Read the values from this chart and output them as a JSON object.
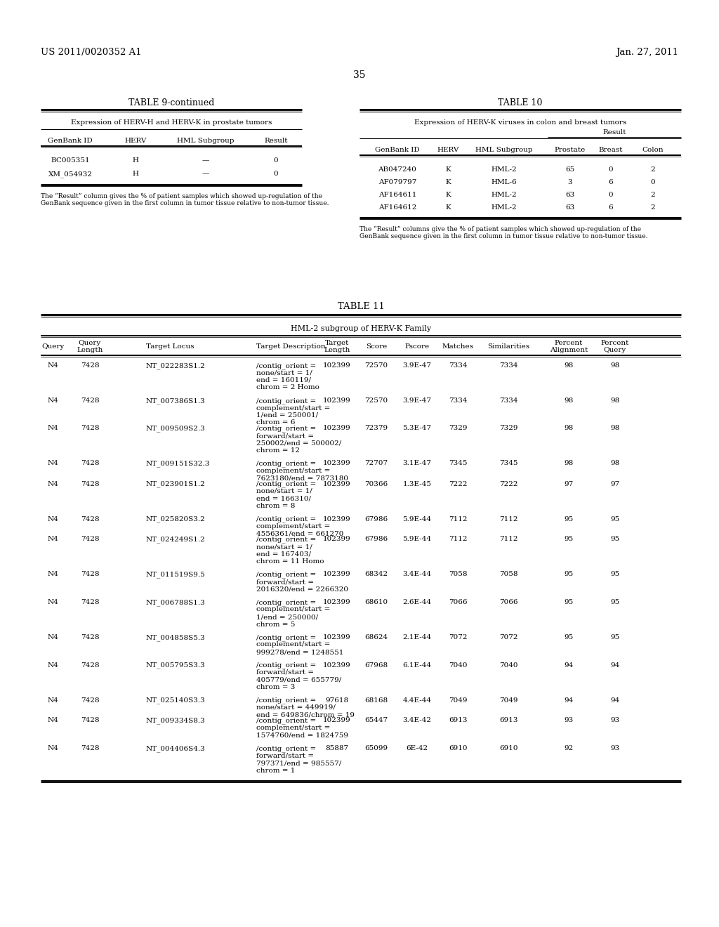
{
  "header_left": "US 2011/0020352 A1",
  "header_right": "Jan. 27, 2011",
  "page_number": "35",
  "bg_color": "#ffffff",
  "text_color": "#000000",
  "table9_title": "TABLE 9-continued",
  "table9_subtitle": "Expression of HERV-H and HERV-K in prostate tumors",
  "table9_headers": [
    "GenBank ID",
    "HERV",
    "HML Subgroup",
    "Result"
  ],
  "table9_rows": [
    [
      "BC005351",
      "H",
      "—",
      "0"
    ],
    [
      "XM_054932",
      "H",
      "—",
      "0"
    ]
  ],
  "table9_footnote": "The “Result” column gives the % of patient samples which showed up-regulation of the\nGenBank sequence given in the first column in tumor tissue relative to non-tumor tissue.",
  "table10_title": "TABLE 10",
  "table10_subtitle": "Expression of HERV-K viruses in colon and breast tumors",
  "table10_result_header": "Result",
  "table10_headers": [
    "GenBank ID",
    "HERV",
    "HML Subgroup",
    "Prostate",
    "Breast",
    "Colon"
  ],
  "table10_rows": [
    [
      "AB047240",
      "K",
      "HML-2",
      "65",
      "0",
      "2"
    ],
    [
      "AF079797",
      "K",
      "HML-6",
      "3",
      "6",
      "0"
    ],
    [
      "AF164611",
      "K",
      "HML-2",
      "63",
      "0",
      "2"
    ],
    [
      "AF164612",
      "K",
      "HML-2",
      "63",
      "6",
      "2"
    ]
  ],
  "table10_footnote": "The “Result” columns give the % of patient samples which showed up-regulation of the\nGenBank sequence given in the first column in tumor tissue relative to non-tumor tissue.",
  "table11_title": "TABLE 11",
  "table11_subtitle": "HML-2 subgroup of HERV-K Family",
  "table11_rows": [
    [
      "N4",
      "7428",
      "NT_022283S1.2",
      "/contig_orient =\nnone/start = 1/\nend = 160119/\nchrom = 2 Homo",
      "102399",
      "72570",
      "3.9E-47",
      "7334",
      "7334",
      "98",
      "98"
    ],
    [
      "N4",
      "7428",
      "NT_007386S1.3",
      "/contig_orient =\ncomplement/start =\n1/end = 250001/\nchrom = 6",
      "102399",
      "72570",
      "3.9E-47",
      "7334",
      "7334",
      "98",
      "98"
    ],
    [
      "N4",
      "7428",
      "NT_009509S2.3",
      "/contig_orient =\nforward/start =\n250002/end = 500002/\nchrom = 12",
      "102399",
      "72379",
      "5.3E-47",
      "7329",
      "7329",
      "98",
      "98"
    ],
    [
      "N4",
      "7428",
      "NT_009151S32.3",
      "/contig_orient =\ncomplement/start =\n7623180/end = 7873180",
      "102399",
      "72707",
      "3.1E-47",
      "7345",
      "7345",
      "98",
      "98"
    ],
    [
      "N4",
      "7428",
      "NT_023901S1.2",
      "/contig_orient =\nnone/start = 1/\nend = 166310/\nchrom = 8",
      "102399",
      "70366",
      "1.3E-45",
      "7222",
      "7222",
      "97",
      "97"
    ],
    [
      "N4",
      "7428",
      "NT_025820S3.2",
      "/contig_orient =\ncomplement/start =\n4556361/end = 661270",
      "102399",
      "67986",
      "5.9E-44",
      "7112",
      "7112",
      "95",
      "95"
    ],
    [
      "N4",
      "7428",
      "NT_024249S1.2",
      "/contig_orient =\nnone/start = 1/\nend = 167403/\nchrom = 11 Homo",
      "102399",
      "67986",
      "5.9E-44",
      "7112",
      "7112",
      "95",
      "95"
    ],
    [
      "N4",
      "7428",
      "NT_011519S9.5",
      "/contig_orient =\nforward/start =\n2016320/end = 2266320",
      "102399",
      "68342",
      "3.4E-44",
      "7058",
      "7058",
      "95",
      "95"
    ],
    [
      "N4",
      "7428",
      "NT_006788S1.3",
      "/contig_orient =\ncomplement/start =\n1/end = 250000/\nchrom = 5",
      "102399",
      "68610",
      "2.6E-44",
      "7066",
      "7066",
      "95",
      "95"
    ],
    [
      "N4",
      "7428",
      "NT_004858S5.3",
      "/contig_orient =\ncomplement/start =\n999278/end = 1248551",
      "102399",
      "68624",
      "2.1E-44",
      "7072",
      "7072",
      "95",
      "95"
    ],
    [
      "N4",
      "7428",
      "NT_005795S3.3",
      "/contig_orient =\nforward/start =\n405779/end = 655779/\nchrom = 3",
      "102399",
      "67968",
      "6.1E-44",
      "7040",
      "7040",
      "94",
      "94"
    ],
    [
      "N4",
      "7428",
      "NT_025140S3.3",
      "/contig_orient =\nnone/start = 449919/\nend = 649836/chrom = 19",
      "97618",
      "68168",
      "4.4E-44",
      "7049",
      "7049",
      "94",
      "94"
    ],
    [
      "N4",
      "7428",
      "NT_009334S8.3",
      "/contig_orient =\ncomplement/start =\n1574760/end = 1824759",
      "102399",
      "65447",
      "3.4E-42",
      "6913",
      "6913",
      "93",
      "93"
    ],
    [
      "N4",
      "7428",
      "NT_004406S4.3",
      "/contig_orient =\nforward/start =\n797371/end = 985557/\nchrom = 1",
      "85887",
      "65099",
      "6E-42",
      "6910",
      "6910",
      "92",
      "93"
    ]
  ],
  "table11_row_lines": [
    4,
    3,
    4,
    2,
    4,
    2,
    4,
    3,
    4,
    3,
    4,
    2,
    3,
    4
  ]
}
